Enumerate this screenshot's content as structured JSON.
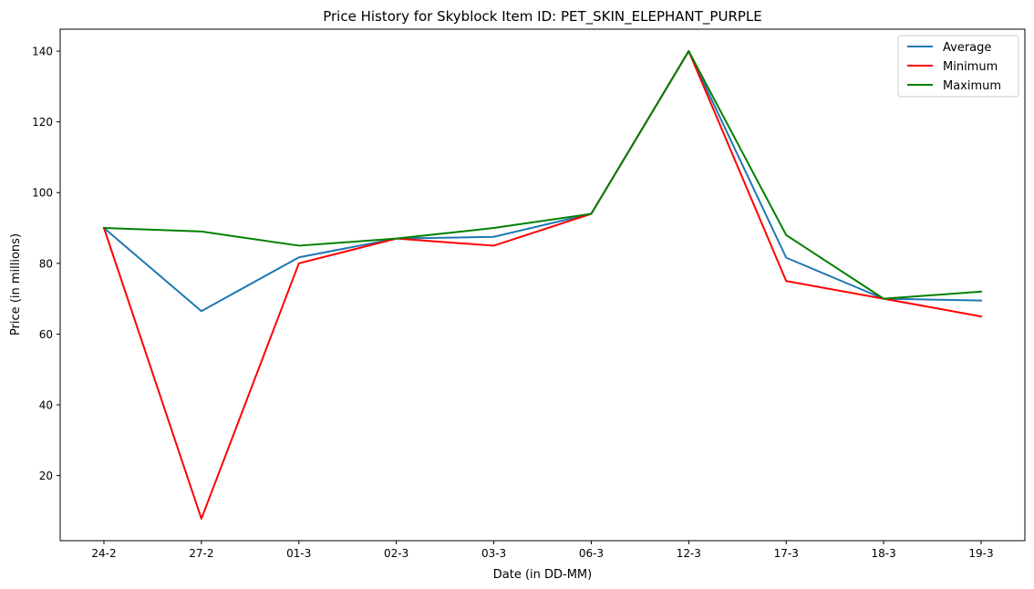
{
  "chart_data": {
    "type": "line",
    "title": "Price History for Skyblock Item ID: PET_SKIN_ELEPHANT_PURPLE",
    "xlabel": "Date (in DD-MM)",
    "ylabel": "Price (in millions)",
    "categories": [
      "24-2",
      "27-2",
      "01-3",
      "02-3",
      "03-3",
      "06-3",
      "12-3",
      "17-3",
      "18-3",
      "19-3"
    ],
    "ylim": [
      1.6,
      146.2
    ],
    "yticks": [
      20,
      40,
      60,
      80,
      100,
      120,
      140
    ],
    "grid": false,
    "legend_position": "top-right",
    "series": [
      {
        "name": "Average",
        "color": "#1f77b4",
        "values": [
          90,
          66.5,
          81.7,
          87,
          87.5,
          94,
          140,
          81.6,
          70,
          69.5
        ]
      },
      {
        "name": "Minimum",
        "color": "#ff0000",
        "values": [
          90,
          7.8,
          80,
          87,
          85,
          94,
          140,
          75,
          70,
          65
        ]
      },
      {
        "name": "Maximum",
        "color": "#008000",
        "values": [
          90,
          89,
          85,
          87,
          90,
          94,
          140,
          88,
          70,
          72
        ]
      }
    ]
  }
}
